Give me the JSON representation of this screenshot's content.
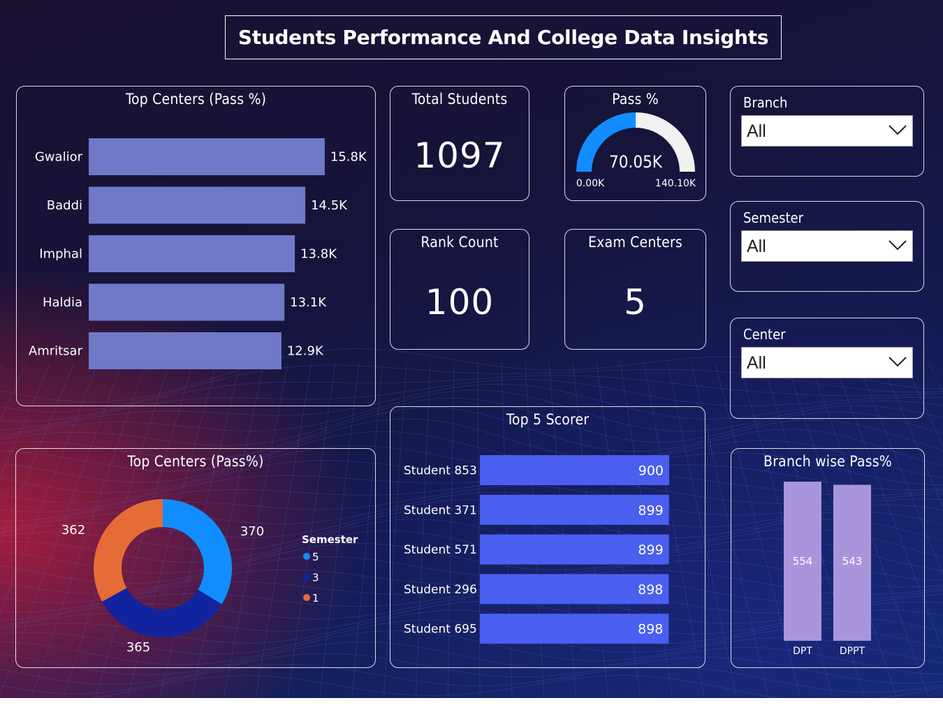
{
  "title": "Students Performance And College Data Insights",
  "kpis": {
    "total_students": {
      "label": "Total Students",
      "value": "1097"
    },
    "pass_pct": {
      "label": "Pass %",
      "value": "70.05K",
      "min": "0.00K",
      "max": "140.10K",
      "fraction": 0.5
    },
    "rank_count": {
      "label": "Rank Count",
      "value": "100"
    },
    "exam_centers": {
      "label": "Exam Centers",
      "value": "5"
    }
  },
  "slicers": [
    {
      "label": "Branch",
      "value": "All"
    },
    {
      "label": "Semester",
      "value": "All"
    },
    {
      "label": "Center",
      "value": "All"
    }
  ],
  "colors": {
    "center_bar": "#7078c8",
    "scorer_bar": "#4a5ef0",
    "branch_bar": "#a995dc",
    "sem5": "#118dff",
    "sem3": "#12239e",
    "sem1": "#e66c37",
    "gauge_fill": "#118dff",
    "gauge_bg": "#f1f1f1"
  },
  "chart_data": [
    {
      "id": "top_centers_bar",
      "type": "bar",
      "orientation": "horizontal",
      "title": "Top Centers (Pass %)",
      "categories": [
        "Gwalior",
        "Baddi",
        "Imphal",
        "Haldia",
        "Amritsar"
      ],
      "values": [
        15.8,
        14.5,
        13.8,
        13.1,
        12.9
      ],
      "labels": [
        "15.8K",
        "14.5K",
        "13.8K",
        "13.1K",
        "12.9K"
      ],
      "xlim": [
        0,
        16.6
      ],
      "unit": "K"
    },
    {
      "id": "top_centers_donut",
      "type": "pie",
      "title": "Top Centers (Pass%)",
      "legend_title": "Semester",
      "categories": [
        "5",
        "3",
        "1"
      ],
      "values": [
        370,
        365,
        362
      ],
      "labels": [
        "370",
        "365",
        "362"
      ]
    },
    {
      "id": "top5_scorer",
      "type": "bar",
      "orientation": "horizontal",
      "title": "Top 5 Scorer",
      "categories": [
        "Student 853",
        "Student 371",
        "Student 571",
        "Student 296",
        "Student 695"
      ],
      "values": [
        900,
        899,
        899,
        898,
        898
      ],
      "labels": [
        "900",
        "899",
        "899",
        "898",
        "898"
      ],
      "xlim": [
        0,
        900
      ]
    },
    {
      "id": "branch_pass",
      "type": "bar",
      "orientation": "vertical",
      "title": "Branch wise Pass%",
      "categories": [
        "DPT",
        "DPPT"
      ],
      "values": [
        554,
        543
      ],
      "labels": [
        "554",
        "543"
      ],
      "ylim": [
        0,
        554
      ]
    }
  ]
}
